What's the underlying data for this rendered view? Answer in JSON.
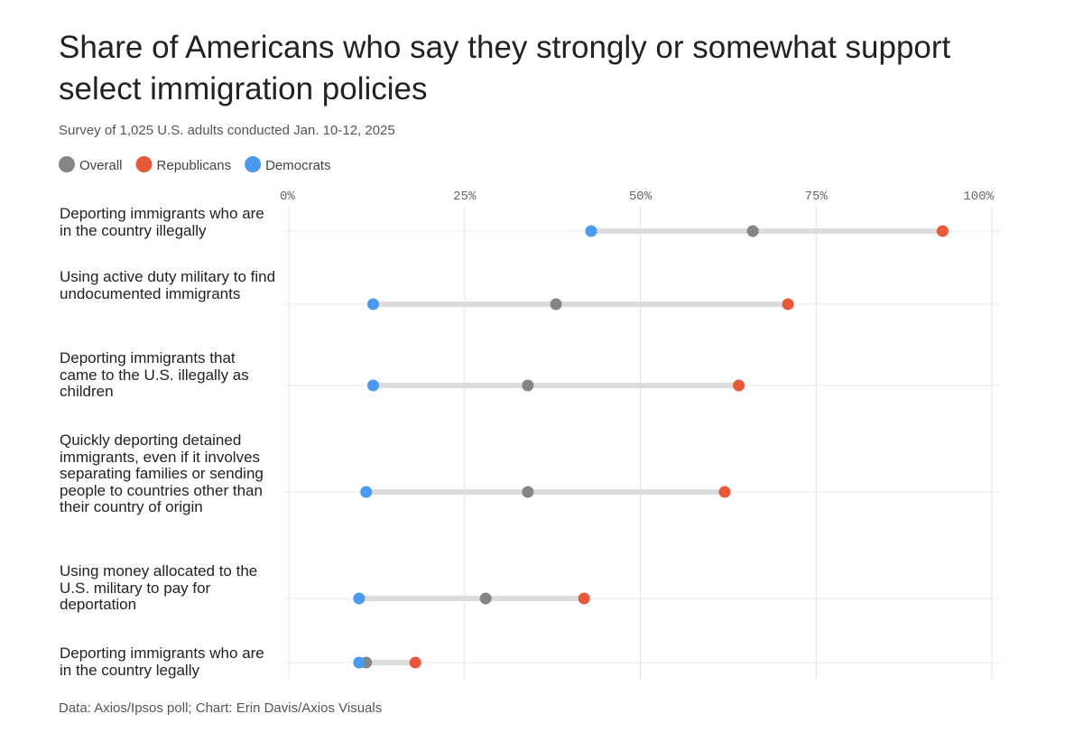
{
  "chart_data": {
    "type": "dot-range",
    "title": "Share of Americans who say they strongly or somewhat support select immigration policies",
    "subtitle": "Survey of 1,025 U.S. adults conducted Jan. 10-12, 2025",
    "source": "Data: Axios/Ipsos poll; Chart: Erin Davis/Axios Visuals",
    "categories": [
      "Deporting immigrants who are in the country illegally",
      "Using active duty military to find undocumented immigrants",
      "Deporting immigrants that came to the U.S. illegally as children",
      "Quickly deporting detained immigrants, even if it involves separating families or sending people to countries other than their country of origin",
      "Using money allocated to the U.S. military to pay for deportation",
      "Deporting immigrants who are in the country legally"
    ],
    "series": [
      {
        "name": "Overall",
        "color": "#858585",
        "values": [
          66,
          38,
          34,
          34,
          28,
          11
        ]
      },
      {
        "name": "Republicans",
        "color": "#e8593a",
        "values": [
          93,
          71,
          64,
          62,
          42,
          18
        ]
      },
      {
        "name": "Democrats",
        "color": "#4a9af0",
        "values": [
          43,
          12,
          12,
          11,
          10,
          10
        ]
      }
    ],
    "xlim": [
      0,
      100
    ],
    "xticks": [
      {
        "value": 0,
        "label": "0%"
      },
      {
        "value": 25,
        "label": "25%"
      },
      {
        "value": 50,
        "label": "50%"
      },
      {
        "value": 75,
        "label": "75%"
      },
      {
        "value": 100,
        "label": "100%"
      }
    ],
    "grid": true
  }
}
